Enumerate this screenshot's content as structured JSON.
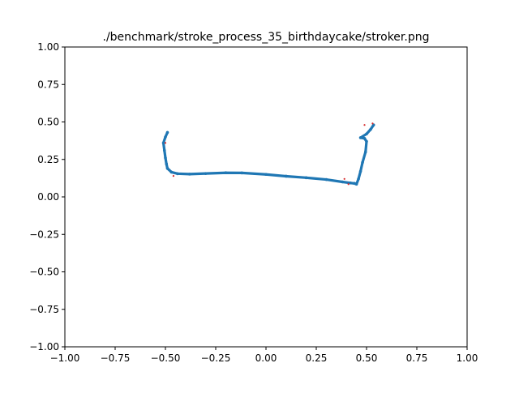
{
  "chart_data": {
    "type": "scatter",
    "title": "./benchmark/stroke_process_35_birthdaycake/stroker.png",
    "xlabel": "",
    "ylabel": "",
    "xlim": [
      -1.0,
      1.0
    ],
    "ylim": [
      -1.0,
      1.0
    ],
    "xticks": [
      -1.0,
      -0.75,
      -0.5,
      -0.25,
      0.0,
      0.25,
      0.5,
      0.75,
      1.0
    ],
    "yticks": [
      -1.0,
      -0.75,
      -0.5,
      -0.25,
      0.0,
      0.25,
      0.5,
      0.75,
      1.0
    ],
    "xtick_labels": [
      "−1.00",
      "−0.75",
      "−0.50",
      "−0.25",
      "0.00",
      "0.25",
      "0.50",
      "0.75",
      "1.00"
    ],
    "ytick_labels": [
      "−1.00",
      "−0.75",
      "−0.50",
      "−0.25",
      "0.00",
      "0.25",
      "0.50",
      "0.75",
      "1.00"
    ],
    "grid": false,
    "series": [
      {
        "color": "#1f77b4",
        "marker": "dot",
        "polyline": [
          [
            -0.49,
            0.43
          ],
          [
            -0.5,
            0.4
          ],
          [
            -0.51,
            0.36
          ],
          [
            -0.505,
            0.31
          ],
          [
            -0.5,
            0.26
          ],
          [
            -0.495,
            0.22
          ],
          [
            -0.49,
            0.19
          ],
          [
            -0.47,
            0.165
          ],
          [
            -0.44,
            0.155
          ],
          [
            -0.38,
            0.152
          ],
          [
            -0.3,
            0.156
          ],
          [
            -0.2,
            0.161
          ],
          [
            -0.12,
            0.16
          ],
          [
            0.0,
            0.15
          ],
          [
            0.1,
            0.138
          ],
          [
            0.2,
            0.128
          ],
          [
            0.3,
            0.116
          ],
          [
            0.38,
            0.1
          ],
          [
            0.42,
            0.093
          ],
          [
            0.44,
            0.09
          ],
          [
            0.45,
            0.085
          ],
          [
            0.46,
            0.12
          ],
          [
            0.47,
            0.17
          ],
          [
            0.48,
            0.23
          ],
          [
            0.495,
            0.3
          ],
          [
            0.5,
            0.37
          ],
          [
            0.49,
            0.39
          ],
          [
            0.47,
            0.395
          ],
          [
            0.5,
            0.42
          ],
          [
            0.52,
            0.45
          ],
          [
            0.535,
            0.48
          ]
        ]
      },
      {
        "color": "#d62728",
        "marker": "dot",
        "points": [
          [
            -0.5,
            0.36
          ],
          [
            -0.46,
            0.14
          ],
          [
            0.39,
            0.12
          ],
          [
            0.41,
            0.085
          ],
          [
            0.49,
            0.48
          ],
          [
            0.53,
            0.49
          ]
        ]
      }
    ]
  }
}
